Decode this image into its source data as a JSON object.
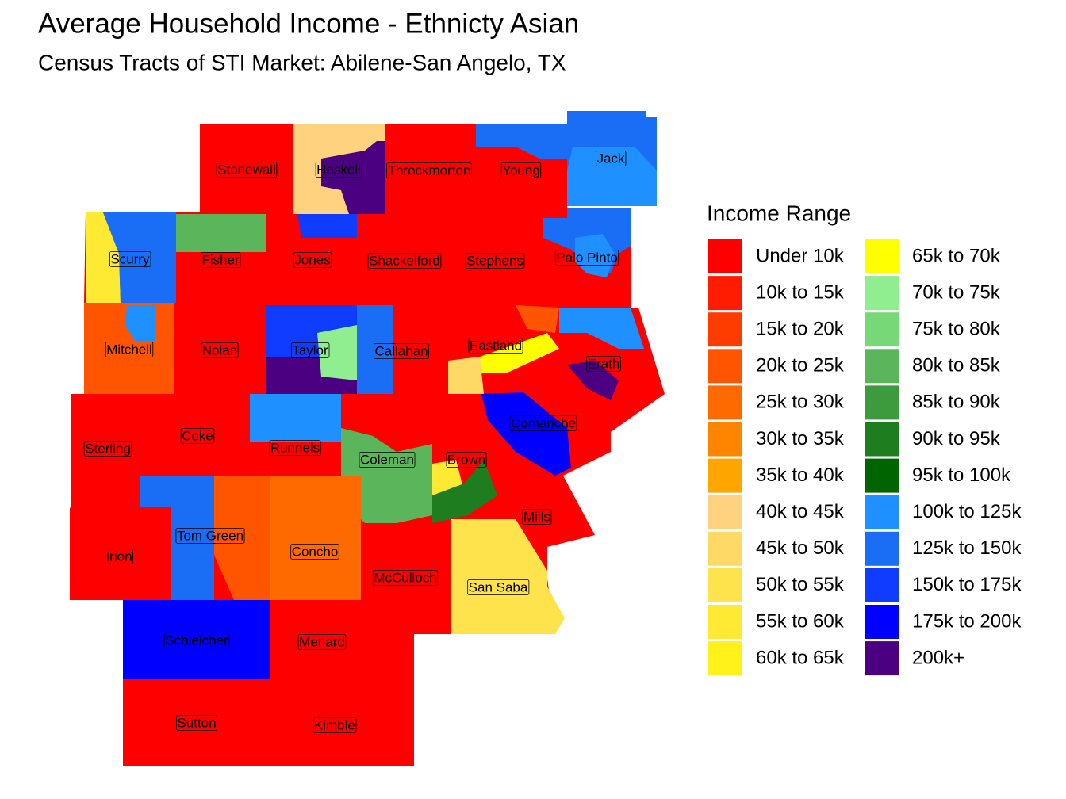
{
  "header": {
    "title": "Average Household Income - Ethnicty Asian",
    "subtitle": "Census Tracts of STI Market: Abilene-San Angelo, TX"
  },
  "legend": {
    "title": "Income Range",
    "items": [
      {
        "label": "Under 10k",
        "color": "#ff0000"
      },
      {
        "label": "10k to 15k",
        "color": "#ff1c00"
      },
      {
        "label": "15k to 20k",
        "color": "#ff3c00"
      },
      {
        "label": "20k to 25k",
        "color": "#ff5500"
      },
      {
        "label": "25k to 30k",
        "color": "#ff6a00"
      },
      {
        "label": "30k to 35k",
        "color": "#ff8400"
      },
      {
        "label": "35k to 40k",
        "color": "#ffa500"
      },
      {
        "label": "40k to 45k",
        "color": "#ffd27f"
      },
      {
        "label": "45k to 50k",
        "color": "#ffd966"
      },
      {
        "label": "50k to 55k",
        "color": "#ffe34d"
      },
      {
        "label": "55k to 60k",
        "color": "#ffea33"
      },
      {
        "label": "60k to 65k",
        "color": "#fff21a"
      },
      {
        "label": "65k to 70k",
        "color": "#ffff00"
      },
      {
        "label": "70k to 75k",
        "color": "#90ee90"
      },
      {
        "label": "75k to 80k",
        "color": "#77d877"
      },
      {
        "label": "80k to 85k",
        "color": "#5bb55b"
      },
      {
        "label": "85k to 90k",
        "color": "#3d9a3d"
      },
      {
        "label": "90k to 95k",
        "color": "#1e7d1e"
      },
      {
        "label": "95k to 100k",
        "color": "#006400"
      },
      {
        "label": "100k to 125k",
        "color": "#1e90ff"
      },
      {
        "label": "125k to 150k",
        "color": "#1a6ef5"
      },
      {
        "label": "150k to 175k",
        "color": "#0f3cff"
      },
      {
        "label": "175k to 200k",
        "color": "#0000ff"
      },
      {
        "label": "200k+",
        "color": "#4b0082"
      }
    ]
  },
  "counties": [
    {
      "name": "Stonewall"
    },
    {
      "name": "Haskell"
    },
    {
      "name": "Throckmorton"
    },
    {
      "name": "Young"
    },
    {
      "name": "Jack"
    },
    {
      "name": "Scurry"
    },
    {
      "name": "Fisher"
    },
    {
      "name": "Jones"
    },
    {
      "name": "Shackelford"
    },
    {
      "name": "Stephens"
    },
    {
      "name": "Palo Pinto"
    },
    {
      "name": "Mitchell"
    },
    {
      "name": "Nolan"
    },
    {
      "name": "Taylor"
    },
    {
      "name": "Callahan"
    },
    {
      "name": "Eastland"
    },
    {
      "name": "Erath"
    },
    {
      "name": "Comanche"
    },
    {
      "name": "Sterling"
    },
    {
      "name": "Coke"
    },
    {
      "name": "Runnels"
    },
    {
      "name": "Coleman"
    },
    {
      "name": "Brown"
    },
    {
      "name": "Mills"
    },
    {
      "name": "Tom Green"
    },
    {
      "name": "Irion"
    },
    {
      "name": "Concho"
    },
    {
      "name": "McCulloch"
    },
    {
      "name": "San Saba"
    },
    {
      "name": "Schleicher"
    },
    {
      "name": "Menard"
    },
    {
      "name": "Sutton"
    },
    {
      "name": "Kimble"
    }
  ]
}
